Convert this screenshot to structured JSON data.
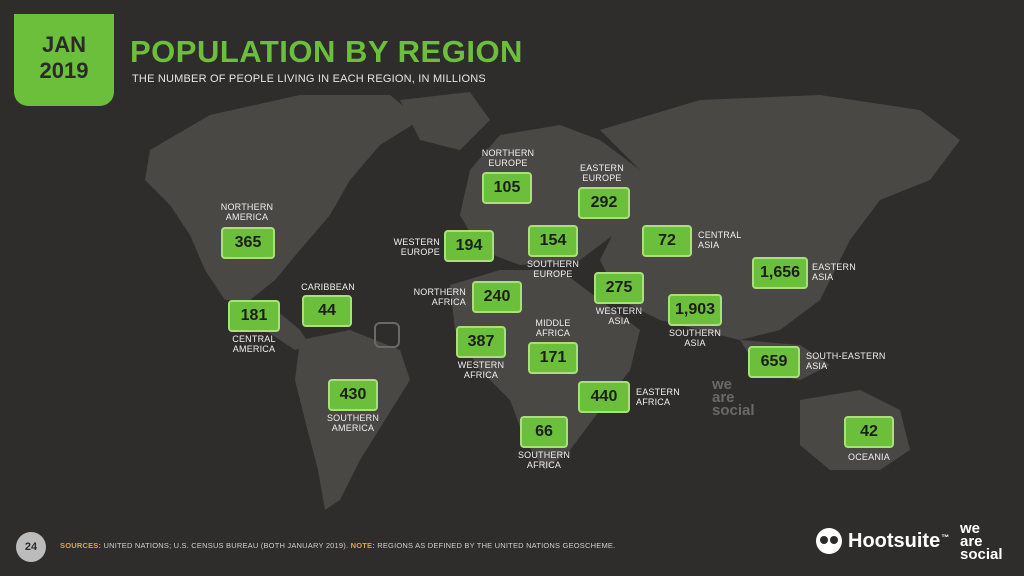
{
  "header": {
    "month": "JAN",
    "year": "2019",
    "title": "POPULATION BY REGION",
    "subtitle": "THE NUMBER OF PEOPLE LIVING IN EACH REGION, IN MILLIONS"
  },
  "regions": [
    {
      "id": "northern-america",
      "name": "NORTHERN AMERICA",
      "value": "365"
    },
    {
      "id": "caribbean",
      "name": "CARIBBEAN",
      "value": "44"
    },
    {
      "id": "central-america",
      "name": "CENTRAL AMERICA",
      "value": "181"
    },
    {
      "id": "southern-america",
      "name": "SOUTHERN AMERICA",
      "value": "430"
    },
    {
      "id": "northern-europe",
      "name": "NORTHERN EUROPE",
      "value": "105"
    },
    {
      "id": "western-europe",
      "name": "WESTERN EUROPE",
      "value": "194"
    },
    {
      "id": "southern-europe",
      "name": "SOUTHERN EUROPE",
      "value": "154"
    },
    {
      "id": "eastern-europe",
      "name": "EASTERN EUROPE",
      "value": "292"
    },
    {
      "id": "northern-africa",
      "name": "NORTHERN AFRICA",
      "value": "240"
    },
    {
      "id": "western-africa",
      "name": "WESTERN AFRICA",
      "value": "387"
    },
    {
      "id": "middle-africa",
      "name": "MIDDLE AFRICA",
      "value": "171"
    },
    {
      "id": "eastern-africa",
      "name": "EASTERN AFRICA",
      "value": "440"
    },
    {
      "id": "southern-africa",
      "name": "SOUTHERN AFRICA",
      "value": "66"
    },
    {
      "id": "western-asia",
      "name": "WESTERN ASIA",
      "value": "275"
    },
    {
      "id": "central-asia",
      "name": "CENTRAL ASIA",
      "value": "72"
    },
    {
      "id": "southern-asia",
      "name": "SOUTHERN ASIA",
      "value": "1,903"
    },
    {
      "id": "eastern-asia",
      "name": "EASTERN ASIA",
      "value": "1,656"
    },
    {
      "id": "south-eastern-asia",
      "name": "SOUTH-EASTERN ASIA",
      "value": "659"
    },
    {
      "id": "oceania",
      "name": "OCEANIA",
      "value": "42"
    }
  ],
  "footer": {
    "page": "24",
    "sources_label": "SOURCES:",
    "sources_text": "UNITED NATIONS; U.S. CENSUS BUREAU (BOTH JANUARY 2019).",
    "note_label": "NOTE:",
    "note_text": "REGIONS AS DEFINED BY THE UNITED NATIONS GEOSCHEME.",
    "brand": "Hootsuite",
    "brand_tm": "™",
    "partner_line1": "we",
    "partner_line2": "are",
    "partner_line3": "social"
  },
  "colors": {
    "accent": "#6bbf3a",
    "background": "#2e2d2b",
    "land": "#4a4845"
  }
}
